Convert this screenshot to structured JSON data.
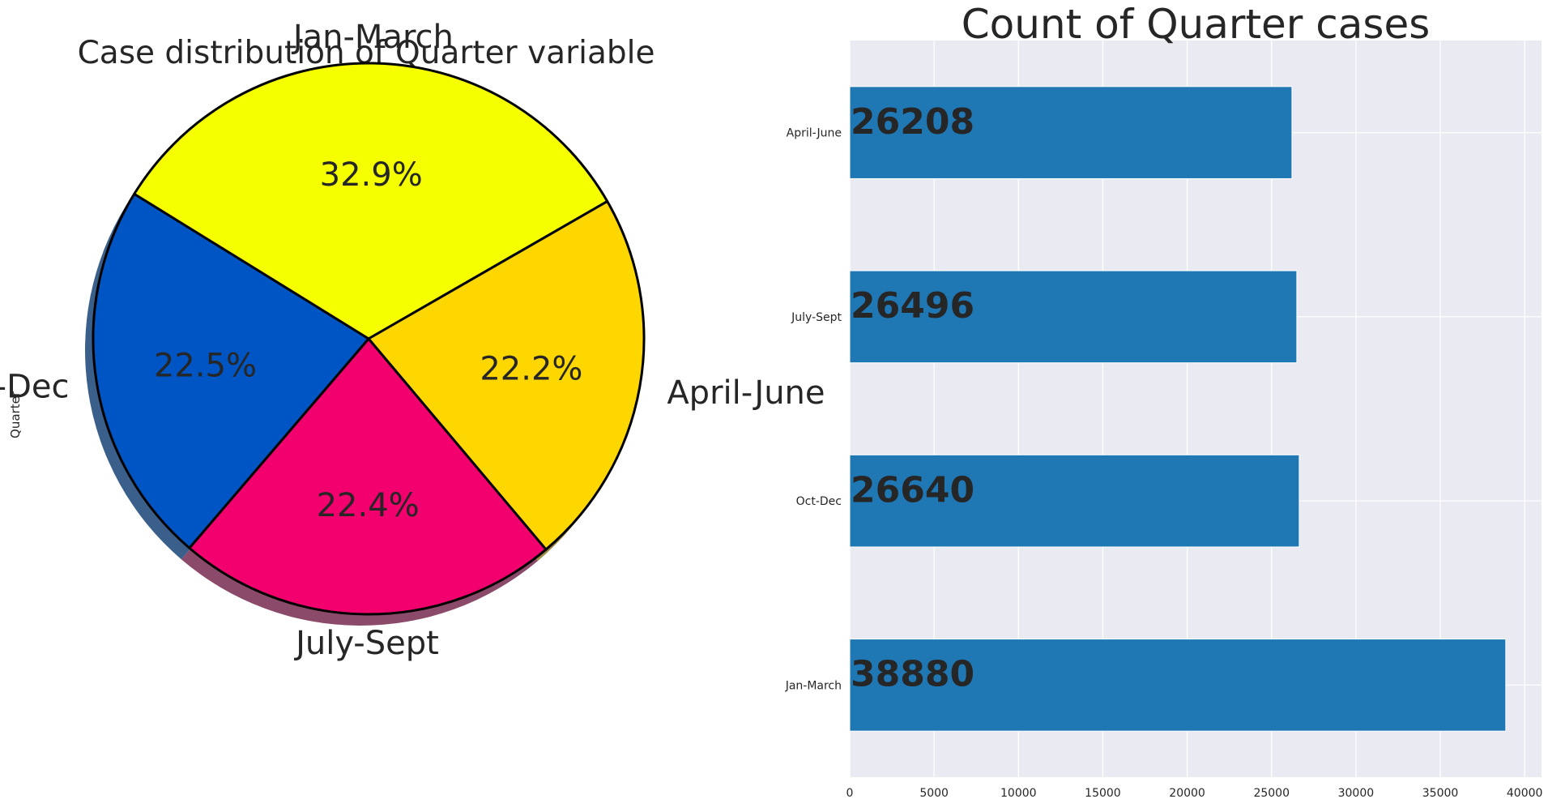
{
  "chart_data": [
    {
      "type": "pie",
      "title": "Case distribution of Quarter variable",
      "ylabel": "Quarter",
      "labels": [
        "Jan-March",
        "April-June",
        "July-Sept",
        "Oct-Dec"
      ],
      "values": [
        38880,
        26208,
        26496,
        26640
      ],
      "percent_labels": [
        "32.9%",
        "22.2%",
        "22.4%",
        "22.5%"
      ],
      "colors": [
        "#f5ff00",
        "#ffd700",
        "#f2006e",
        "#0055c4"
      ],
      "shadow": true,
      "edge_color": "#000000"
    },
    {
      "type": "bar",
      "orientation": "horizontal",
      "title": "Count of Quarter cases",
      "categories": [
        "April-June",
        "July-Sept",
        "Oct-Dec",
        "Jan-March"
      ],
      "values": [
        26208,
        26496,
        26640,
        38880
      ],
      "data_labels": [
        "26208",
        "26496",
        "26640",
        "38880"
      ],
      "xlim": [
        0,
        41000
      ],
      "xticks": [
        0,
        5000,
        10000,
        15000,
        20000,
        25000,
        30000,
        35000,
        40000
      ],
      "xtick_labels": [
        "0",
        "5000",
        "10000",
        "15000",
        "20000",
        "25000",
        "30000",
        "35000",
        "40000"
      ],
      "grid": true,
      "bar_color": "#1f77b4",
      "background": "#eaeaf2"
    }
  ]
}
